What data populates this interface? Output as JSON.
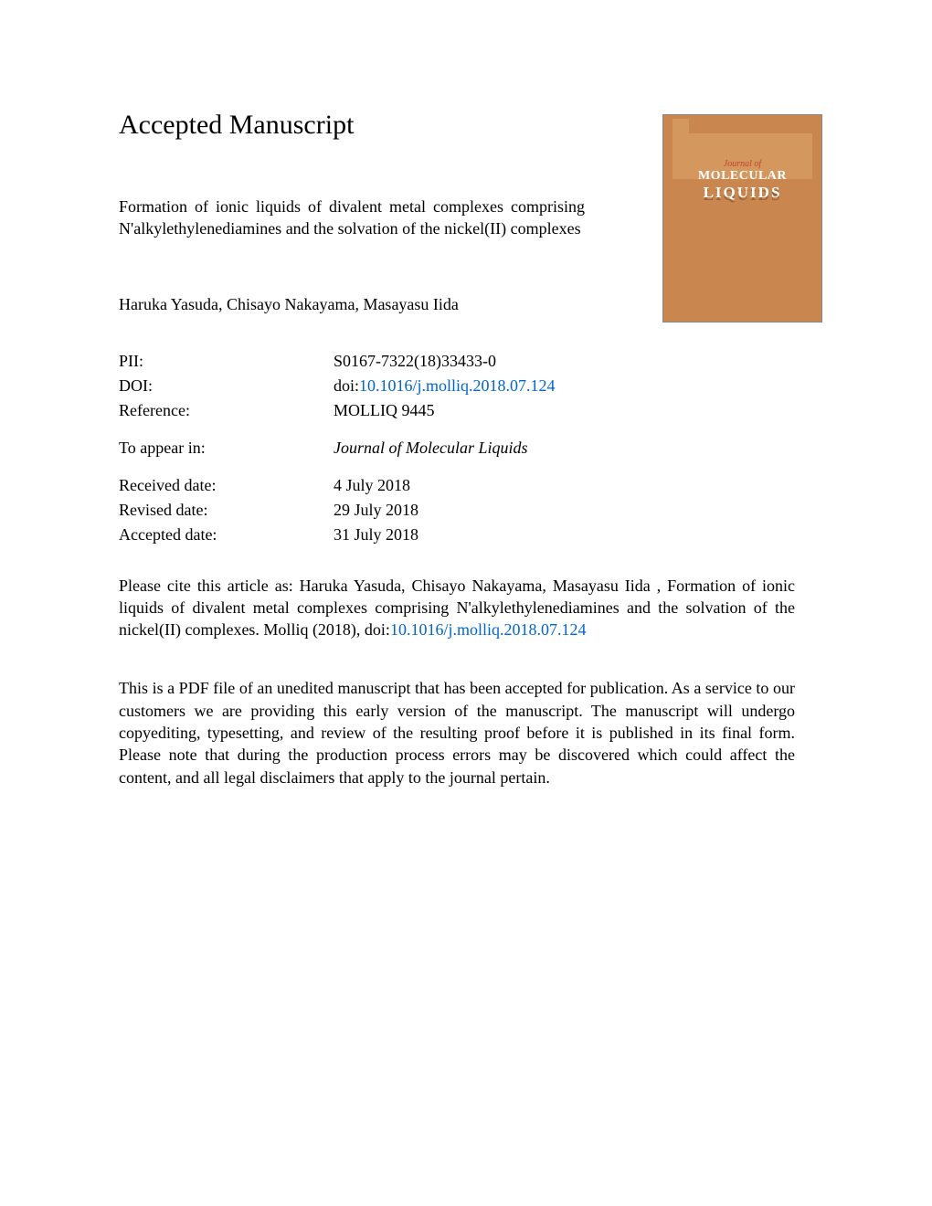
{
  "page_title": "Accepted Manuscript",
  "article_title": "Formation of ionic liquids of divalent metal complexes comprising N'alkylethylenediamines and the solvation of the nickel(II) complexes",
  "authors": "Haruka Yasuda, Chisayo Nakayama, Masayasu Iida",
  "metadata": {
    "pii_label": "PII:",
    "pii_value": "S0167-7322(18)33433-0",
    "doi_label": "DOI:",
    "doi_prefix": "doi:",
    "doi_link": "10.1016/j.molliq.2018.07.124",
    "reference_label": "Reference:",
    "reference_value": "MOLLIQ 9445",
    "appear_label": "To appear in:",
    "appear_value": "Journal of Molecular Liquids",
    "received_label": "Received date:",
    "received_value": "4 July 2018",
    "revised_label": "Revised date:",
    "revised_value": "29 July 2018",
    "accepted_label": "Accepted date:",
    "accepted_value": "31 July 2018"
  },
  "citation": {
    "prefix": "Please cite this article as: Haruka Yasuda, Chisayo Nakayama, Masayasu Iida , Formation of ionic liquids of divalent metal complexes comprising N'alkylethylenediamines and the solvation of the nickel(II) complexes. Molliq (2018), doi:",
    "link": "10.1016/j.molliq.2018.07.124"
  },
  "disclaimer": "This is a PDF file of an unedited manuscript that has been accepted for publication. As a service to our customers we are providing this early version of the manuscript. The manuscript will undergo copyediting, typesetting, and review of the resulting proof before it is published in its final form. Please note that during the production process errors may be discovered which could affect the content, and all legal disclaimers that apply to the journal pertain.",
  "journal_cover": {
    "pretext": "Journal of",
    "line1": "MOLECULAR",
    "line2": "LIQUIDS"
  },
  "colors": {
    "cover_bg": "#c9874f",
    "cover_inner": "#d4985f",
    "link": "#0066cc",
    "text": "#000000",
    "cover_title": "#ffffff",
    "cover_pretext": "#c84028"
  }
}
